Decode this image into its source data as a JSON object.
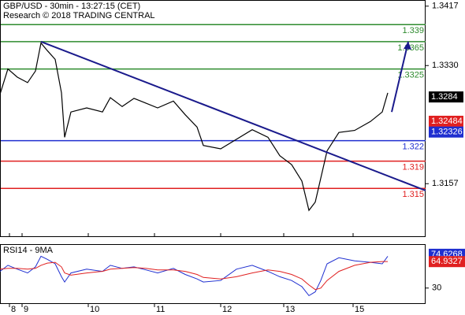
{
  "chart_data": [
    {
      "type": "line",
      "title": "GBP/USD - 30min - 13:27:15 (CET)",
      "subtitle": "Research © 2018 TRADING CENTRAL",
      "x": [
        0,
        2.5,
        5.5,
        8.75,
        11.25,
        13,
        15,
        17.5,
        19.5,
        20.5,
        22.5,
        27.5,
        32.5,
        35,
        38.75,
        42.5,
        46.25,
        50,
        55,
        58.75,
        62.5,
        64.5,
        70,
        75,
        80,
        85,
        88.75,
        92.5,
        95.75,
        98,
        100,
        101.75,
        103.75,
        107.5,
        112.5,
        117.5,
        121.25,
        123
      ],
      "values": [
        1.3288,
        1.3325,
        1.3313,
        1.3305,
        1.3322,
        1.3363,
        1.3352,
        1.3339,
        1.329,
        1.3225,
        1.3262,
        1.3268,
        1.3262,
        1.3283,
        1.327,
        1.3282,
        1.3275,
        1.3268,
        1.3278,
        1.3258,
        1.324,
        1.3213,
        1.3208,
        1.3222,
        1.3236,
        1.3225,
        1.3198,
        1.3185,
        1.3161,
        1.3118,
        1.313,
        1.3165,
        1.3205,
        1.3232,
        1.3235,
        1.3248,
        1.3262,
        1.329
      ],
      "color": "#000000",
      "xlim": [
        0,
        135
      ],
      "xticks": [
        {
          "value": 3,
          "label": "8"
        },
        {
          "value": 7,
          "label": "9"
        },
        {
          "value": 28,
          "label": "10"
        },
        {
          "value": 49,
          "label": "11"
        },
        {
          "value": 70,
          "label": "12"
        },
        {
          "value": 90,
          "label": "13"
        },
        {
          "value": 112,
          "label": "15"
        }
      ],
      "ylim": [
        1.308,
        1.3426
      ],
      "yticks": [
        1.3417,
        {
          "value": 1.333,
          "label": "1.3330"
        },
        1.3157
      ],
      "levels": [
        {
          "value": 1.339,
          "color": "#2e8b2e"
        },
        {
          "value": 1.3365,
          "color": "#2e8b2e"
        },
        {
          "value": 1.3325,
          "color": "#2e8b2e"
        },
        {
          "value": 1.322,
          "color": "#1f2fd0"
        },
        {
          "value": 1.319,
          "color": "#e02020"
        },
        {
          "value": 1.315,
          "color": "#e02020"
        }
      ],
      "trendline": {
        "x": [
          13,
          135
        ],
        "y": [
          1.3365,
          1.3147
        ],
        "color": "#1a1a8c"
      },
      "forecast": {
        "x": [
          124.25,
          129.5
        ],
        "y": [
          1.3262,
          1.3365
        ],
        "color": "#1a1a8c"
      },
      "price_tags": [
        {
          "value": 1.3284,
          "color": "#000000"
        },
        {
          "value": 1.32484,
          "color": "#e02020"
        },
        {
          "value": 1.32326,
          "color": "#1f2fd0"
        }
      ]
    },
    {
      "type": "line",
      "title": "RSI14 - 9MA",
      "ylim": [
        10,
        87
      ],
      "yticks": [
        30
      ],
      "series": [
        {
          "color": "#1f2fd0",
          "values": [
            52,
            60,
            55,
            50,
            58,
            72,
            68,
            62,
            45,
            38,
            50,
            55,
            52,
            60,
            56,
            58,
            54,
            50,
            56,
            48,
            42,
            38,
            40,
            55,
            60,
            52,
            45,
            40,
            32,
            20,
            25,
            40,
            62,
            70,
            66,
            64,
            62,
            72
          ]
        },
        {
          "color": "#e02020",
          "values": [
            55,
            56,
            56,
            55,
            56,
            60,
            63,
            64,
            58,
            50,
            47,
            50,
            52,
            55,
            56,
            57,
            56,
            54,
            54,
            52,
            48,
            44,
            42,
            45,
            50,
            54,
            52,
            48,
            42,
            34,
            28,
            30,
            40,
            52,
            60,
            64,
            65,
            65
          ]
        }
      ],
      "tags": [
        {
          "value": 74.6268,
          "color": "#1f2fd0"
        },
        {
          "value": 64.9327,
          "color": "#e02020"
        }
      ]
    }
  ]
}
